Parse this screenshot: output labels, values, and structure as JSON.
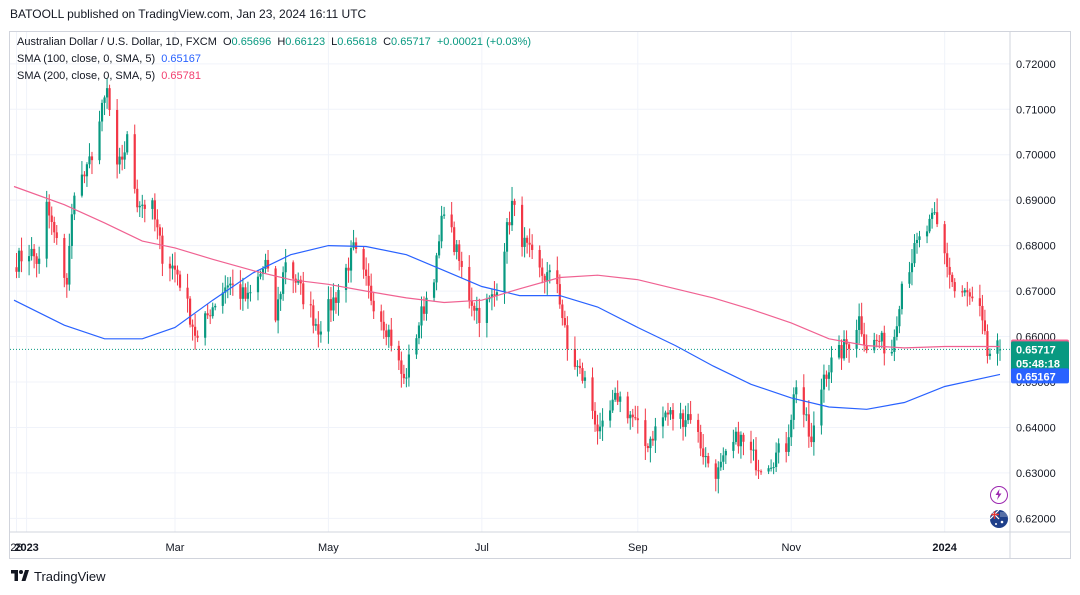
{
  "header": {
    "publish_text": "BATOOLL published on TradingView.com, Jan 23, 2024 16:11 UTC"
  },
  "legend": {
    "symbol": "Australian Dollar / U.S. Dollar, 1D, FXCM",
    "open_label": "O",
    "open": "0.65696",
    "high_label": "H",
    "high": "0.66123",
    "low_label": "L",
    "low": "0.65618",
    "close_label": "C",
    "close": "0.65717",
    "change": "+0.00021 (+0.03%)",
    "sma100_label": "SMA (100, close, 0, SMA, 5)",
    "sma100_value": "0.65167",
    "sma200_label": "SMA (200, close, 0, SMA, 5)",
    "sma200_value": "0.65781"
  },
  "price_badges": {
    "sma200": "0.65781",
    "last": "0.65717",
    "countdown": "05:48:18",
    "sma100": "0.65167"
  },
  "footer": {
    "brand": "TradingView"
  },
  "colors": {
    "up": "#089981",
    "down": "#f23645",
    "sma100": "#2962ff",
    "sma200": "#f06292",
    "grid": "#f0f3fa"
  },
  "icons": [
    "lightning-icon",
    "flag-icon",
    "tradingview-logo-icon"
  ],
  "chart_data": {
    "type": "candlestick",
    "title": "Australian Dollar / U.S. Dollar, 1D, FXCM",
    "y_range": [
      0.617,
      0.727
    ],
    "y_ticks": [
      "0.72000",
      "0.71000",
      "0.70000",
      "0.69000",
      "0.68000",
      "0.67000",
      "0.66000",
      "0.65000",
      "0.64000",
      "0.63000",
      "0.62000"
    ],
    "x_range": [
      "2022-12-27",
      "2024-01-23"
    ],
    "x_ticks": [
      {
        "label": "28",
        "date": "2022-12-28"
      },
      {
        "label": "2023",
        "date": "2023-01-01"
      },
      {
        "label": "Mar",
        "date": "2023-03-01"
      },
      {
        "label": "May",
        "date": "2023-05-01"
      },
      {
        "label": "Jul",
        "date": "2023-07-01"
      },
      {
        "label": "Sep",
        "date": "2023-09-01"
      },
      {
        "label": "Nov",
        "date": "2023-11-01"
      },
      {
        "label": "2024",
        "date": "2024-01-01"
      }
    ],
    "close_anchors": [
      {
        "date": "2022-12-28",
        "value": 0.6765
      },
      {
        "date": "2023-01-02",
        "value": 0.679
      },
      {
        "date": "2023-01-06",
        "value": 0.676
      },
      {
        "date": "2023-01-09",
        "value": 0.6885
      },
      {
        "date": "2023-01-17",
        "value": 0.672
      },
      {
        "date": "2023-01-20",
        "value": 0.693
      },
      {
        "date": "2023-01-25",
        "value": 0.696
      },
      {
        "date": "2023-02-02",
        "value": 0.714
      },
      {
        "date": "2023-02-06",
        "value": 0.696
      },
      {
        "date": "2023-02-10",
        "value": 0.703
      },
      {
        "date": "2023-02-14",
        "value": 0.69
      },
      {
        "date": "2023-02-20",
        "value": 0.688
      },
      {
        "date": "2023-02-24",
        "value": 0.678
      },
      {
        "date": "2023-03-02",
        "value": 0.674
      },
      {
        "date": "2023-03-10",
        "value": 0.659
      },
      {
        "date": "2023-03-15",
        "value": 0.666
      },
      {
        "date": "2023-03-22",
        "value": 0.672
      },
      {
        "date": "2023-03-30",
        "value": 0.668
      },
      {
        "date": "2023-04-06",
        "value": 0.676
      },
      {
        "date": "2023-04-10",
        "value": 0.664
      },
      {
        "date": "2023-04-14",
        "value": 0.677
      },
      {
        "date": "2023-04-20",
        "value": 0.67
      },
      {
        "date": "2023-04-27",
        "value": 0.662
      },
      {
        "date": "2023-05-04",
        "value": 0.669
      },
      {
        "date": "2023-05-11",
        "value": 0.679
      },
      {
        "date": "2023-05-17",
        "value": 0.67
      },
      {
        "date": "2023-05-25",
        "value": 0.661
      },
      {
        "date": "2023-05-31",
        "value": 0.65
      },
      {
        "date": "2023-06-06",
        "value": 0.663
      },
      {
        "date": "2023-06-13",
        "value": 0.676
      },
      {
        "date": "2023-06-16",
        "value": 0.689
      },
      {
        "date": "2023-06-20",
        "value": 0.68
      },
      {
        "date": "2023-06-26",
        "value": 0.669
      },
      {
        "date": "2023-06-30",
        "value": 0.665
      },
      {
        "date": "2023-07-06",
        "value": 0.669
      },
      {
        "date": "2023-07-13",
        "value": 0.689
      },
      {
        "date": "2023-07-18",
        "value": 0.68
      },
      {
        "date": "2023-07-24",
        "value": 0.674
      },
      {
        "date": "2023-07-31",
        "value": 0.672
      },
      {
        "date": "2023-08-04",
        "value": 0.657
      },
      {
        "date": "2023-08-11",
        "value": 0.65
      },
      {
        "date": "2023-08-17",
        "value": 0.638
      },
      {
        "date": "2023-08-24",
        "value": 0.647
      },
      {
        "date": "2023-08-30",
        "value": 0.642
      },
      {
        "date": "2023-09-04",
        "value": 0.636
      },
      {
        "date": "2023-09-12",
        "value": 0.643
      },
      {
        "date": "2023-09-18",
        "value": 0.642
      },
      {
        "date": "2023-09-22",
        "value": 0.643
      },
      {
        "date": "2023-09-28",
        "value": 0.633
      },
      {
        "date": "2023-10-03",
        "value": 0.63
      },
      {
        "date": "2023-10-11",
        "value": 0.638
      },
      {
        "date": "2023-10-16",
        "value": 0.634
      },
      {
        "date": "2023-10-19",
        "value": 0.632
      },
      {
        "date": "2023-10-24",
        "value": 0.633
      },
      {
        "date": "2023-10-30",
        "value": 0.636
      },
      {
        "date": "2023-11-03",
        "value": 0.65
      },
      {
        "date": "2023-11-09",
        "value": 0.636
      },
      {
        "date": "2023-11-14",
        "value": 0.652
      },
      {
        "date": "2023-11-20",
        "value": 0.656
      },
      {
        "date": "2023-11-24",
        "value": 0.659
      },
      {
        "date": "2023-11-28",
        "value": 0.664
      },
      {
        "date": "2023-12-01",
        "value": 0.658
      },
      {
        "date": "2023-12-06",
        "value": 0.659
      },
      {
        "date": "2023-12-11",
        "value": 0.657
      },
      {
        "date": "2023-12-15",
        "value": 0.672
      },
      {
        "date": "2023-12-21",
        "value": 0.68
      },
      {
        "date": "2023-12-28",
        "value": 0.686
      },
      {
        "date": "2024-01-02",
        "value": 0.676
      },
      {
        "date": "2024-01-05",
        "value": 0.67
      },
      {
        "date": "2024-01-10",
        "value": 0.669
      },
      {
        "date": "2024-01-15",
        "value": 0.665
      },
      {
        "date": "2024-01-18",
        "value": 0.656
      },
      {
        "date": "2024-01-22",
        "value": 0.6571
      },
      {
        "date": "2024-01-23",
        "value": 0.65717
      }
    ],
    "series": [
      {
        "name": "SMA (100, close, 0, SMA, 5)",
        "color": "#2962ff",
        "points": [
          {
            "date": "2022-12-27",
            "value": 0.668
          },
          {
            "date": "2023-01-16",
            "value": 0.6625
          },
          {
            "date": "2023-02-01",
            "value": 0.6595
          },
          {
            "date": "2023-02-16",
            "value": 0.6595
          },
          {
            "date": "2023-03-01",
            "value": 0.662
          },
          {
            "date": "2023-03-16",
            "value": 0.668
          },
          {
            "date": "2023-04-01",
            "value": 0.674
          },
          {
            "date": "2023-04-16",
            "value": 0.678
          },
          {
            "date": "2023-05-01",
            "value": 0.68
          },
          {
            "date": "2023-05-16",
            "value": 0.6798
          },
          {
            "date": "2023-06-01",
            "value": 0.678
          },
          {
            "date": "2023-06-16",
            "value": 0.6745
          },
          {
            "date": "2023-07-01",
            "value": 0.671
          },
          {
            "date": "2023-07-16",
            "value": 0.669
          },
          {
            "date": "2023-08-01",
            "value": 0.669
          },
          {
            "date": "2023-08-16",
            "value": 0.6665
          },
          {
            "date": "2023-09-01",
            "value": 0.662
          },
          {
            "date": "2023-09-16",
            "value": 0.658
          },
          {
            "date": "2023-10-01",
            "value": 0.6535
          },
          {
            "date": "2023-10-16",
            "value": 0.6495
          },
          {
            "date": "2023-11-01",
            "value": 0.6465
          },
          {
            "date": "2023-11-16",
            "value": 0.6445
          },
          {
            "date": "2023-12-01",
            "value": 0.644
          },
          {
            "date": "2023-12-16",
            "value": 0.6455
          },
          {
            "date": "2024-01-01",
            "value": 0.649
          },
          {
            "date": "2024-01-23",
            "value": 0.65167
          }
        ]
      },
      {
        "name": "SMA (200, close, 0, SMA, 5)",
        "color": "#f06292",
        "points": [
          {
            "date": "2022-12-27",
            "value": 0.693
          },
          {
            "date": "2023-01-16",
            "value": 0.689
          },
          {
            "date": "2023-02-01",
            "value": 0.685
          },
          {
            "date": "2023-02-16",
            "value": 0.681
          },
          {
            "date": "2023-03-01",
            "value": 0.6795
          },
          {
            "date": "2023-03-16",
            "value": 0.677
          },
          {
            "date": "2023-04-01",
            "value": 0.6745
          },
          {
            "date": "2023-04-16",
            "value": 0.6725
          },
          {
            "date": "2023-05-01",
            "value": 0.6715
          },
          {
            "date": "2023-05-16",
            "value": 0.67
          },
          {
            "date": "2023-06-01",
            "value": 0.6685
          },
          {
            "date": "2023-06-16",
            "value": 0.6675
          },
          {
            "date": "2023-07-01",
            "value": 0.668
          },
          {
            "date": "2023-07-16",
            "value": 0.6705
          },
          {
            "date": "2023-08-01",
            "value": 0.673
          },
          {
            "date": "2023-08-16",
            "value": 0.6735
          },
          {
            "date": "2023-09-01",
            "value": 0.6725
          },
          {
            "date": "2023-09-16",
            "value": 0.6705
          },
          {
            "date": "2023-10-01",
            "value": 0.6685
          },
          {
            "date": "2023-10-16",
            "value": 0.666
          },
          {
            "date": "2023-11-01",
            "value": 0.663
          },
          {
            "date": "2023-11-16",
            "value": 0.6595
          },
          {
            "date": "2023-12-01",
            "value": 0.658
          },
          {
            "date": "2023-12-16",
            "value": 0.6575
          },
          {
            "date": "2024-01-01",
            "value": 0.6578
          },
          {
            "date": "2024-01-23",
            "value": 0.65781
          }
        ]
      }
    ],
    "last_price": 0.65717,
    "grid": true
  }
}
